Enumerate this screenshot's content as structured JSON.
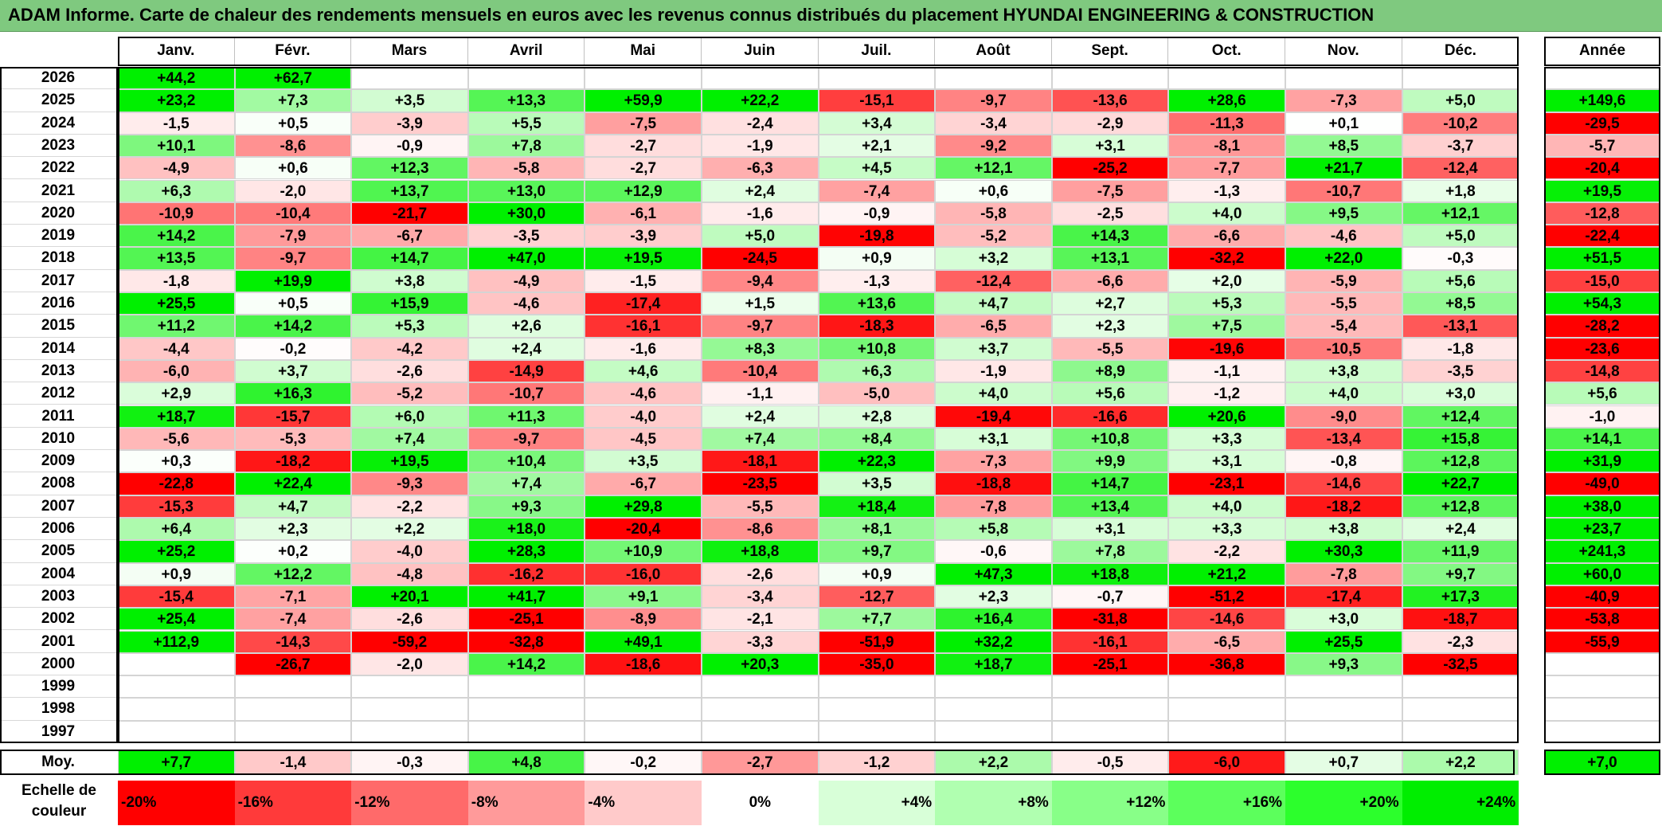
{
  "title": "ADAM Informe. Carte de chaleur des rendements mensuels en euros avec les revenus connus distribués du placement HYUNDAI ENGINEERING & CONSTRUCTION",
  "chart_data": {
    "type": "heatmap",
    "columns": [
      "Janv.",
      "Févr.",
      "Mars",
      "Avril",
      "Mai",
      "Juin",
      "Juil.",
      "Août",
      "Sept.",
      "Oct.",
      "Nov.",
      "Déc."
    ],
    "year_column_label": "Année",
    "rows": [
      {
        "year": "2026",
        "months": [
          "+44,2",
          "+62,7",
          "",
          "",
          "",
          "",
          "",
          "",
          "",
          "",
          "",
          ""
        ],
        "annual": ""
      },
      {
        "year": "2025",
        "months": [
          "+23,2",
          "+7,3",
          "+3,5",
          "+13,3",
          "+59,9",
          "+22,2",
          "-15,1",
          "-9,7",
          "-13,6",
          "+28,6",
          "-7,3",
          "+5,0"
        ],
        "annual": "+149,6"
      },
      {
        "year": "2024",
        "months": [
          "-1,5",
          "+0,5",
          "-3,9",
          "+5,5",
          "-7,5",
          "-2,4",
          "+3,4",
          "-3,4",
          "-2,9",
          "-11,3",
          "+0,1",
          "-10,2"
        ],
        "annual": "-29,5"
      },
      {
        "year": "2023",
        "months": [
          "+10,1",
          "-8,6",
          "-0,9",
          "+7,8",
          "-2,7",
          "-1,9",
          "+2,1",
          "-9,2",
          "+3,1",
          "-8,1",
          "+8,5",
          "-3,7"
        ],
        "annual": "-5,7"
      },
      {
        "year": "2022",
        "months": [
          "-4,9",
          "+0,6",
          "+12,3",
          "-5,8",
          "-2,7",
          "-6,3",
          "+4,5",
          "+12,1",
          "-25,2",
          "-7,7",
          "+21,7",
          "-12,4"
        ],
        "annual": "-20,4"
      },
      {
        "year": "2021",
        "months": [
          "+6,3",
          "-2,0",
          "+13,7",
          "+13,0",
          "+12,9",
          "+2,4",
          "-7,4",
          "+0,6",
          "-7,5",
          "-1,3",
          "-10,7",
          "+1,8"
        ],
        "annual": "+19,5"
      },
      {
        "year": "2020",
        "months": [
          "-10,9",
          "-10,4",
          "-21,7",
          "+30,0",
          "-6,1",
          "-1,6",
          "-0,9",
          "-5,8",
          "-2,5",
          "+4,0",
          "+9,5",
          "+12,1"
        ],
        "annual": "-12,8"
      },
      {
        "year": "2019",
        "months": [
          "+14,2",
          "-7,9",
          "-6,7",
          "-3,5",
          "-3,9",
          "+5,0",
          "-19,8",
          "-5,2",
          "+14,3",
          "-6,6",
          "-4,6",
          "+5,0"
        ],
        "annual": "-22,4"
      },
      {
        "year": "2018",
        "months": [
          "+13,5",
          "-9,7",
          "+14,7",
          "+47,0",
          "+19,5",
          "-24,5",
          "+0,9",
          "+3,2",
          "+13,1",
          "-32,2",
          "+22,0",
          "-0,3"
        ],
        "annual": "+51,5"
      },
      {
        "year": "2017",
        "months": [
          "-1,8",
          "+19,9",
          "+3,8",
          "-4,9",
          "-1,5",
          "-9,4",
          "-1,3",
          "-12,4",
          "-6,6",
          "+2,0",
          "-5,9",
          "+5,6"
        ],
        "annual": "-15,0"
      },
      {
        "year": "2016",
        "months": [
          "+25,5",
          "+0,5",
          "+15,9",
          "-4,6",
          "-17,4",
          "+1,5",
          "+13,6",
          "+4,7",
          "+2,7",
          "+5,3",
          "-5,5",
          "+8,5"
        ],
        "annual": "+54,3"
      },
      {
        "year": "2015",
        "months": [
          "+11,2",
          "+14,2",
          "+5,3",
          "+2,6",
          "-16,1",
          "-9,7",
          "-18,3",
          "-6,5",
          "+2,3",
          "+7,5",
          "-5,4",
          "-13,1"
        ],
        "annual": "-28,2"
      },
      {
        "year": "2014",
        "months": [
          "-4,4",
          "-0,2",
          "-4,2",
          "+2,4",
          "-1,6",
          "+8,3",
          "+10,8",
          "+3,7",
          "-5,5",
          "-19,6",
          "-10,5",
          "-1,8"
        ],
        "annual": "-23,6"
      },
      {
        "year": "2013",
        "months": [
          "-6,0",
          "+3,7",
          "-2,6",
          "-14,9",
          "+4,6",
          "-10,4",
          "+6,3",
          "-1,9",
          "+8,9",
          "-1,1",
          "+3,8",
          "-3,5"
        ],
        "annual": "-14,8"
      },
      {
        "year": "2012",
        "months": [
          "+2,9",
          "+16,3",
          "-5,2",
          "-10,7",
          "-4,6",
          "-1,1",
          "-5,0",
          "+4,0",
          "+5,6",
          "-1,2",
          "+4,0",
          "+3,0"
        ],
        "annual": "+5,6"
      },
      {
        "year": "2011",
        "months": [
          "+18,7",
          "-15,7",
          "+6,0",
          "+11,3",
          "-4,0",
          "+2,4",
          "+2,8",
          "-19,4",
          "-16,6",
          "+20,6",
          "-9,0",
          "+12,4"
        ],
        "annual": "-1,0"
      },
      {
        "year": "2010",
        "months": [
          "-5,6",
          "-5,3",
          "+7,4",
          "-9,7",
          "-4,5",
          "+7,4",
          "+8,4",
          "+3,1",
          "+10,8",
          "+3,3",
          "-13,4",
          "+15,8"
        ],
        "annual": "+14,1"
      },
      {
        "year": "2009",
        "months": [
          "+0,3",
          "-18,2",
          "+19,5",
          "+10,4",
          "+3,5",
          "-18,1",
          "+22,3",
          "-7,3",
          "+9,9",
          "+3,1",
          "-0,8",
          "+12,8"
        ],
        "annual": "+31,9"
      },
      {
        "year": "2008",
        "months": [
          "-22,8",
          "+22,4",
          "-9,3",
          "+7,4",
          "-6,7",
          "-23,5",
          "+3,5",
          "-18,8",
          "+14,7",
          "-23,1",
          "-14,6",
          "+22,7"
        ],
        "annual": "-49,0"
      },
      {
        "year": "2007",
        "months": [
          "-15,3",
          "+4,7",
          "-2,2",
          "+9,3",
          "+29,8",
          "-5,5",
          "+18,4",
          "-7,8",
          "+13,4",
          "+4,0",
          "-18,2",
          "+12,8"
        ],
        "annual": "+38,0"
      },
      {
        "year": "2006",
        "months": [
          "+6,4",
          "+2,3",
          "+2,2",
          "+18,0",
          "-20,4",
          "-8,6",
          "+8,1",
          "+5,8",
          "+3,1",
          "+3,3",
          "+3,8",
          "+2,4"
        ],
        "annual": "+23,7"
      },
      {
        "year": "2005",
        "months": [
          "+25,2",
          "+0,2",
          "-4,0",
          "+28,3",
          "+10,9",
          "+18,8",
          "+9,7",
          "-0,6",
          "+7,8",
          "-2,2",
          "+30,3",
          "+11,9"
        ],
        "annual": "+241,3"
      },
      {
        "year": "2004",
        "months": [
          "+0,9",
          "+12,2",
          "-4,8",
          "-16,2",
          "-16,0",
          "-2,6",
          "+0,9",
          "+47,3",
          "+18,8",
          "+21,2",
          "-7,8",
          "+9,7"
        ],
        "annual": "+60,0"
      },
      {
        "year": "2003",
        "months": [
          "-15,4",
          "-7,1",
          "+20,1",
          "+41,7",
          "+9,1",
          "-3,4",
          "-12,7",
          "+2,3",
          "-0,7",
          "-51,2",
          "-17,4",
          "+17,3"
        ],
        "annual": "-40,9"
      },
      {
        "year": "2002",
        "months": [
          "+25,4",
          "-7,4",
          "-2,6",
          "-25,1",
          "-8,9",
          "-2,1",
          "+7,7",
          "+16,4",
          "-31,8",
          "-14,6",
          "+3,0",
          "-18,7"
        ],
        "annual": "-53,8"
      },
      {
        "year": "2001",
        "months": [
          "+112,9",
          "-14,3",
          "-59,2",
          "-32,8",
          "+49,1",
          "-3,3",
          "-51,9",
          "+32,2",
          "-16,1",
          "-6,5",
          "+25,5",
          "-2,3"
        ],
        "annual": "-55,9"
      },
      {
        "year": "2000",
        "months": [
          "",
          "-26,7",
          "-2,0",
          "+14,2",
          "-18,6",
          "+20,3",
          "-35,0",
          "+18,7",
          "-25,1",
          "-36,8",
          "+9,3",
          "-32,5"
        ],
        "annual": ""
      },
      {
        "year": "1999",
        "months": [
          "",
          "",
          "",
          "",
          "",
          "",
          "",
          "",
          "",
          "",
          "",
          ""
        ],
        "annual": ""
      },
      {
        "year": "1998",
        "months": [
          "",
          "",
          "",
          "",
          "",
          "",
          "",
          "",
          "",
          "",
          "",
          ""
        ],
        "annual": ""
      },
      {
        "year": "1997",
        "months": [
          "",
          "",
          "",
          "",
          "",
          "",
          "",
          "",
          "",
          "",
          "",
          ""
        ],
        "annual": ""
      }
    ],
    "average": {
      "label": "Moy.",
      "months": [
        "+7,7",
        "-1,4",
        "-0,3",
        "+4,8",
        "-0,2",
        "-2,7",
        "-1,2",
        "+2,2",
        "-0,5",
        "-6,0",
        "+0,7",
        "+2,2"
      ],
      "annual": "+7,0"
    },
    "color_scale": {
      "label": "Echelle de couleur",
      "steps": [
        {
          "label": "-20%",
          "value": -20,
          "color": "#ff0000"
        },
        {
          "label": "-16%",
          "value": -16,
          "color": "#ff3a3a"
        },
        {
          "label": "-12%",
          "value": -12,
          "color": "#ff6a6a"
        },
        {
          "label": "-8%",
          "value": -8,
          "color": "#ff9a9a"
        },
        {
          "label": "-4%",
          "value": -4,
          "color": "#ffcaca"
        },
        {
          "label": "0%",
          "value": 0,
          "color": "#ffffff"
        },
        {
          "label": "+4%",
          "value": 4,
          "color": "#d8ffd8"
        },
        {
          "label": "+8%",
          "value": 8,
          "color": "#b0ffb0"
        },
        {
          "label": "+12%",
          "value": 12,
          "color": "#88ff88"
        },
        {
          "label": "+16%",
          "value": 16,
          "color": "#5cff5c"
        },
        {
          "label": "+20%",
          "value": 20,
          "color": "#2cff2c"
        },
        {
          "label": "+24%",
          "value": 24,
          "color": "#00ee00"
        }
      ]
    }
  }
}
